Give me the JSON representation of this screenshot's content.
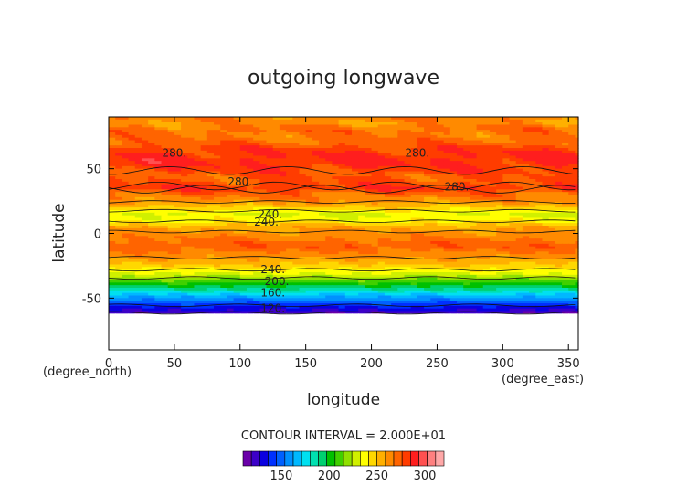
{
  "chart_data": {
    "type": "heatmap",
    "title": "outgoing longwave",
    "xlabel": "longitude",
    "ylabel": "latitude",
    "x_unit_label": "(degree_east)",
    "y_unit_label": "(degree_north)",
    "xlim": [
      0,
      357.5
    ],
    "ylim": [
      -90,
      90
    ],
    "x_ticks": [
      0,
      50,
      100,
      150,
      200,
      250,
      300,
      350
    ],
    "y_ticks": [
      -50,
      0,
      50
    ],
    "grid": false,
    "colorbar": {
      "placement": "bottom",
      "range": [
        110,
        320
      ],
      "tick_values": [
        150,
        200,
        250,
        300
      ],
      "tick_labels": [
        "150",
        "200",
        "250",
        "300"
      ]
    },
    "contour_interval_text": "CONTOUR INTERVAL = 2.000E+01",
    "contour_labels": [
      {
        "text": "280.",
        "lon": 50,
        "lat": 62
      },
      {
        "text": "280.",
        "lon": 235,
        "lat": 62
      },
      {
        "text": "280.",
        "lon": 100,
        "lat": 40
      },
      {
        "text": "280.",
        "lon": 265,
        "lat": 36
      },
      {
        "text": "240.",
        "lon": 123,
        "lat": 15
      },
      {
        "text": "240.",
        "lon": 120,
        "lat": 9
      },
      {
        "text": "240.",
        "lon": 125,
        "lat": -28
      },
      {
        "text": "200.",
        "lon": 128,
        "lat": -37
      },
      {
        "text": "160.",
        "lon": 125,
        "lat": -46
      },
      {
        "text": "120.",
        "lon": 125,
        "lat": -58
      }
    ],
    "zonal_profile": {
      "lat": [
        -62,
        -60,
        -55,
        -50,
        -45,
        -40,
        -35,
        -30,
        -25,
        -20,
        -15,
        -10,
        -5,
        0,
        5,
        10,
        15,
        20,
        25,
        30,
        35,
        40,
        45,
        50,
        55,
        60,
        65,
        70,
        75,
        80,
        85,
        88
      ],
      "value": [
        118,
        125,
        142,
        160,
        180,
        200,
        218,
        235,
        248,
        258,
        266,
        275,
        268,
        262,
        255,
        238,
        232,
        248,
        262,
        270,
        282,
        276,
        275,
        282,
        285,
        285,
        280,
        272,
        268,
        270,
        262,
        265
      ]
    }
  }
}
